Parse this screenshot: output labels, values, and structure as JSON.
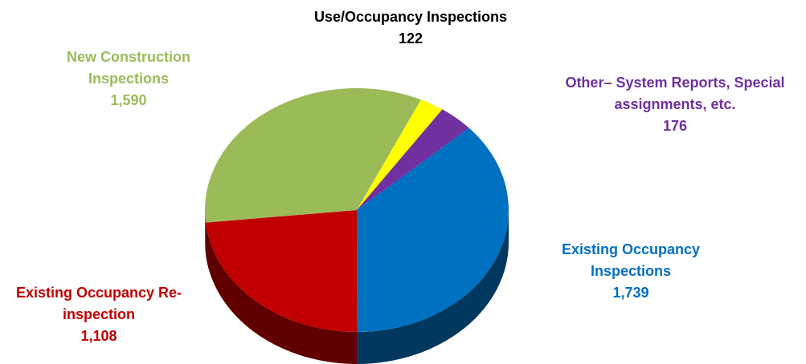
{
  "chart_data": {
    "type": "pie3d",
    "categories": [
      "Use/Occupancy Inspections",
      "Other– System Reports, Special assignments, etc.",
      "Existing Occupancy Inspections",
      "Existing Occupancy Re-inspection",
      "New Construction Inspections"
    ],
    "values": [
      122,
      176,
      1739,
      1108,
      1590
    ],
    "value_labels": [
      "122",
      "176",
      "1,739",
      "1,108",
      "1,590"
    ],
    "colors": [
      "#ffff00",
      "#7030a0",
      "#0070c0",
      "#c00000",
      "#9bbb59"
    ],
    "label_colors": [
      "#000000",
      "#7030a0",
      "#0070c0",
      "#c00000",
      "#9bbb59"
    ]
  }
}
